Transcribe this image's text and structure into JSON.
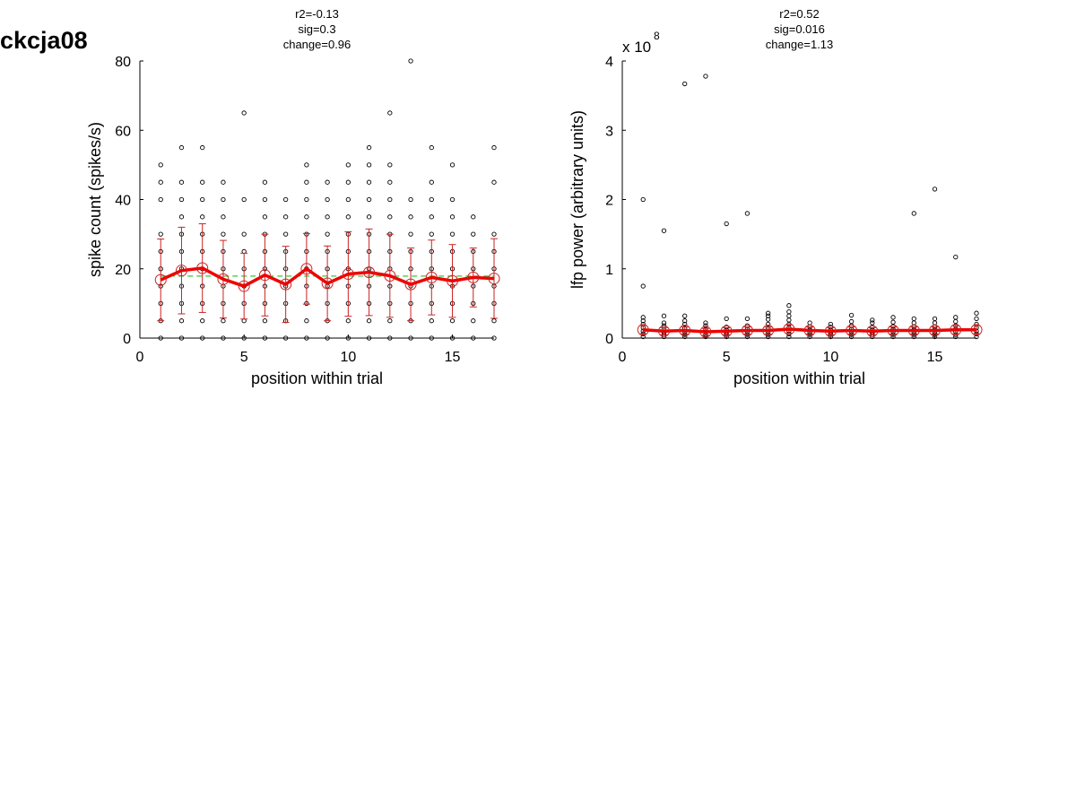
{
  "title": "ckcja08",
  "chart_data": [
    {
      "type": "scatter",
      "stats": [
        "r2=-0.13",
        "sig=0.3",
        "change=0.96"
      ],
      "xlabel": "position within trial",
      "ylabel": "spike count (spikes/s)",
      "xlim": [
        0,
        17
      ],
      "ylim": [
        0,
        80
      ],
      "xticks": [
        "0",
        "5",
        "10",
        "15"
      ],
      "xtick_values": [
        0,
        5,
        10,
        15
      ],
      "yticks": [
        "0",
        "20",
        "40",
        "60",
        "80"
      ],
      "ytick_values": [
        0,
        20,
        40,
        60,
        80
      ],
      "multiplier": "",
      "multiplier_exp": "",
      "trials": [
        [
          0,
          5,
          10,
          15,
          20,
          25,
          30,
          40,
          45,
          50
        ],
        [
          0,
          5,
          10,
          15,
          20,
          25,
          30,
          35,
          40,
          45,
          55
        ],
        [
          0,
          5,
          10,
          15,
          20,
          25,
          30,
          35,
          40,
          45,
          55
        ],
        [
          0,
          5,
          10,
          15,
          20,
          25,
          30,
          35,
          40,
          45
        ],
        [
          0,
          5,
          10,
          15,
          20,
          25,
          30,
          40,
          65
        ],
        [
          0,
          5,
          10,
          15,
          20,
          25,
          30,
          35,
          40,
          45
        ],
        [
          0,
          5,
          10,
          15,
          20,
          25,
          30,
          35,
          40
        ],
        [
          0,
          5,
          10,
          15,
          20,
          25,
          30,
          35,
          40,
          45,
          50
        ],
        [
          0,
          5,
          10,
          15,
          20,
          25,
          30,
          35,
          40,
          45
        ],
        [
          0,
          5,
          10,
          15,
          20,
          25,
          30,
          35,
          40,
          45,
          50
        ],
        [
          0,
          5,
          10,
          15,
          20,
          25,
          30,
          35,
          40,
          45,
          50,
          55
        ],
        [
          0,
          5,
          10,
          15,
          20,
          25,
          30,
          35,
          40,
          45,
          50,
          65
        ],
        [
          0,
          5,
          10,
          15,
          20,
          25,
          30,
          35,
          40,
          80
        ],
        [
          0,
          5,
          10,
          15,
          20,
          25,
          30,
          35,
          40,
          45,
          55
        ],
        [
          0,
          5,
          10,
          15,
          20,
          25,
          30,
          35,
          40,
          50
        ],
        [
          0,
          5,
          10,
          15,
          20,
          25,
          30,
          35
        ],
        [
          0,
          5,
          10,
          15,
          20,
          25,
          30,
          45,
          55
        ]
      ],
      "mean": [
        16.8,
        19.5,
        20.2,
        17.0,
        15.0,
        18.2,
        15.5,
        20.0,
        15.8,
        18.5,
        19.0,
        18.0,
        15.5,
        17.5,
        16.5,
        17.5,
        17.2
      ],
      "sd": [
        11.8,
        12.5,
        12.8,
        11.2,
        9.5,
        11.8,
        11.0,
        10.2,
        10.8,
        12.2,
        12.5,
        12.0,
        10.5,
        10.8,
        10.5,
        8.5,
        11.5
      ],
      "fit": [
        17.9,
        17.9
      ],
      "colors": {
        "points": "#000000",
        "mean_line": "#ee0000",
        "error_bars": "#cc2222",
        "fit": "#33cc33"
      }
    },
    {
      "type": "scatter",
      "stats": [
        "r2=0.52",
        "sig=0.016",
        "change=1.13"
      ],
      "xlabel": "position within trial",
      "ylabel": "lfp power (arbitrary units)",
      "xlim": [
        0,
        17
      ],
      "ylim": [
        0,
        4
      ],
      "xticks": [
        "0",
        "5",
        "10",
        "15"
      ],
      "xtick_values": [
        0,
        5,
        10,
        15
      ],
      "yticks": [
        "0",
        "1",
        "2",
        "3",
        "4"
      ],
      "ytick_values": [
        0,
        1,
        2,
        3,
        4
      ],
      "multiplier": "x 10",
      "multiplier_exp": "8",
      "trials": [
        [
          0.02,
          0.06,
          0.1,
          0.15,
          0.2,
          0.25,
          0.3,
          0.75,
          2.0
        ],
        [
          0.02,
          0.05,
          0.08,
          0.12,
          0.18,
          0.22,
          0.32,
          1.55
        ],
        [
          0.02,
          0.05,
          0.09,
          0.14,
          0.2,
          0.25,
          0.32,
          3.67
        ],
        [
          0.02,
          0.05,
          0.09,
          0.13,
          0.18,
          0.22,
          3.78
        ],
        [
          0.02,
          0.05,
          0.08,
          0.12,
          0.16,
          0.28,
          1.65
        ],
        [
          0.02,
          0.05,
          0.09,
          0.13,
          0.18,
          0.28,
          1.8
        ],
        [
          0.02,
          0.05,
          0.09,
          0.14,
          0.2,
          0.27,
          0.32,
          0.36
        ],
        [
          0.02,
          0.06,
          0.1,
          0.15,
          0.2,
          0.26,
          0.32,
          0.38,
          0.47
        ],
        [
          0.02,
          0.05,
          0.08,
          0.12,
          0.16,
          0.22
        ],
        [
          0.02,
          0.05,
          0.08,
          0.12,
          0.16,
          0.2
        ],
        [
          0.02,
          0.05,
          0.09,
          0.13,
          0.18,
          0.24,
          0.33
        ],
        [
          0.02,
          0.05,
          0.08,
          0.12,
          0.16,
          0.22,
          0.26
        ],
        [
          0.02,
          0.05,
          0.09,
          0.13,
          0.17,
          0.23,
          0.3
        ],
        [
          0.02,
          0.05,
          0.08,
          0.12,
          0.16,
          0.22,
          0.28,
          1.8
        ],
        [
          0.02,
          0.05,
          0.08,
          0.12,
          0.16,
          0.22,
          0.28,
          2.15
        ],
        [
          0.02,
          0.05,
          0.09,
          0.13,
          0.18,
          0.24,
          0.3,
          1.17
        ],
        [
          0.02,
          0.06,
          0.1,
          0.15,
          0.2,
          0.28,
          0.36
        ]
      ],
      "mean": [
        0.12,
        0.1,
        0.11,
        0.09,
        0.1,
        0.11,
        0.11,
        0.13,
        0.11,
        0.1,
        0.11,
        0.1,
        0.11,
        0.11,
        0.11,
        0.12,
        0.12
      ],
      "sd": [
        0.06,
        0.05,
        0.05,
        0.05,
        0.05,
        0.05,
        0.05,
        0.06,
        0.05,
        0.05,
        0.05,
        0.05,
        0.05,
        0.05,
        0.05,
        0.06,
        0.06
      ],
      "fit": [
        0.1,
        0.12
      ],
      "colors": {
        "points": "#000000",
        "mean_line": "#ee0000",
        "error_bars": "#cc2222",
        "fit": "#33cc33"
      }
    }
  ]
}
